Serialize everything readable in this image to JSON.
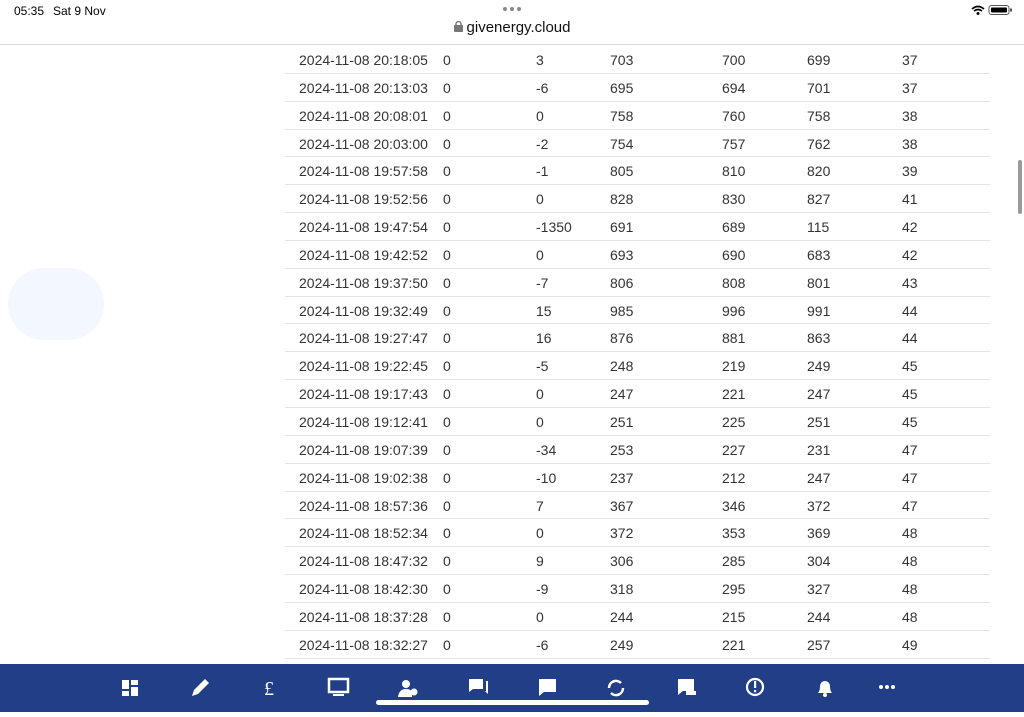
{
  "status_bar": {
    "time": "05:35",
    "date": "Sat 9 Nov"
  },
  "address_bar": {
    "url": "givenergy.cloud"
  },
  "table": {
    "rows": [
      [
        "2024-11-08 20:18:05",
        0,
        3,
        703,
        700,
        699,
        37
      ],
      [
        "2024-11-08 20:13:03",
        0,
        -6,
        695,
        694,
        701,
        37
      ],
      [
        "2024-11-08 20:08:01",
        0,
        0,
        758,
        760,
        758,
        38
      ],
      [
        "2024-11-08 20:03:00",
        0,
        -2,
        754,
        757,
        762,
        38
      ],
      [
        "2024-11-08 19:57:58",
        0,
        -1,
        805,
        810,
        820,
        39
      ],
      [
        "2024-11-08 19:52:56",
        0,
        0,
        828,
        830,
        827,
        41
      ],
      [
        "2024-11-08 19:47:54",
        0,
        -1350,
        691,
        689,
        115,
        42
      ],
      [
        "2024-11-08 19:42:52",
        0,
        0,
        693,
        690,
        683,
        42
      ],
      [
        "2024-11-08 19:37:50",
        0,
        -7,
        806,
        808,
        801,
        43
      ],
      [
        "2024-11-08 19:32:49",
        0,
        15,
        985,
        996,
        991,
        44
      ],
      [
        "2024-11-08 19:27:47",
        0,
        16,
        876,
        881,
        863,
        44
      ],
      [
        "2024-11-08 19:22:45",
        0,
        -5,
        248,
        219,
        249,
        45
      ],
      [
        "2024-11-08 19:17:43",
        0,
        0,
        247,
        221,
        247,
        45
      ],
      [
        "2024-11-08 19:12:41",
        0,
        0,
        251,
        225,
        251,
        45
      ],
      [
        "2024-11-08 19:07:39",
        0,
        -34,
        253,
        227,
        231,
        47
      ],
      [
        "2024-11-08 19:02:38",
        0,
        -10,
        237,
        212,
        247,
        47
      ],
      [
        "2024-11-08 18:57:36",
        0,
        7,
        367,
        346,
        372,
        47
      ],
      [
        "2024-11-08 18:52:34",
        0,
        0,
        372,
        353,
        369,
        48
      ],
      [
        "2024-11-08 18:47:32",
        0,
        9,
        306,
        285,
        304,
        48
      ],
      [
        "2024-11-08 18:42:30",
        0,
        -9,
        318,
        295,
        327,
        48
      ],
      [
        "2024-11-08 18:37:28",
        0,
        0,
        244,
        215,
        244,
        48
      ],
      [
        "2024-11-08 18:32:27",
        0,
        -6,
        249,
        221,
        257,
        49
      ]
    ]
  }
}
